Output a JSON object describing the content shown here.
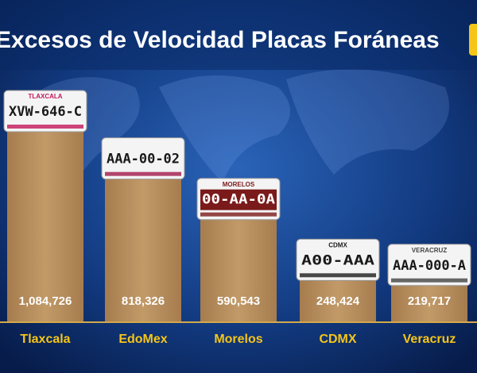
{
  "chart_data": {
    "type": "bar",
    "title": "Excesos de Velocidad Placas Foráneas",
    "categories": [
      "Tlaxcala",
      "EdoMex",
      "Morelos",
      "CDMX",
      "Veracruz"
    ],
    "values": [
      1084726,
      818326,
      590543,
      248424,
      219717
    ],
    "value_labels": [
      "1,084,726",
      "818,326",
      "590,543",
      "248,424",
      "219,717"
    ],
    "color": "#b8915e",
    "plates": [
      {
        "state": "TLAXCALA",
        "number": "XVW-646-C"
      },
      {
        "number": "AAA-00-02"
      },
      {
        "state": "MORELOS",
        "number": "00-AA-0A"
      },
      {
        "state": "CDMX",
        "number": "A00-AAA"
      },
      {
        "state": "VERACRUZ",
        "number": "AAA-000-A"
      }
    ]
  }
}
